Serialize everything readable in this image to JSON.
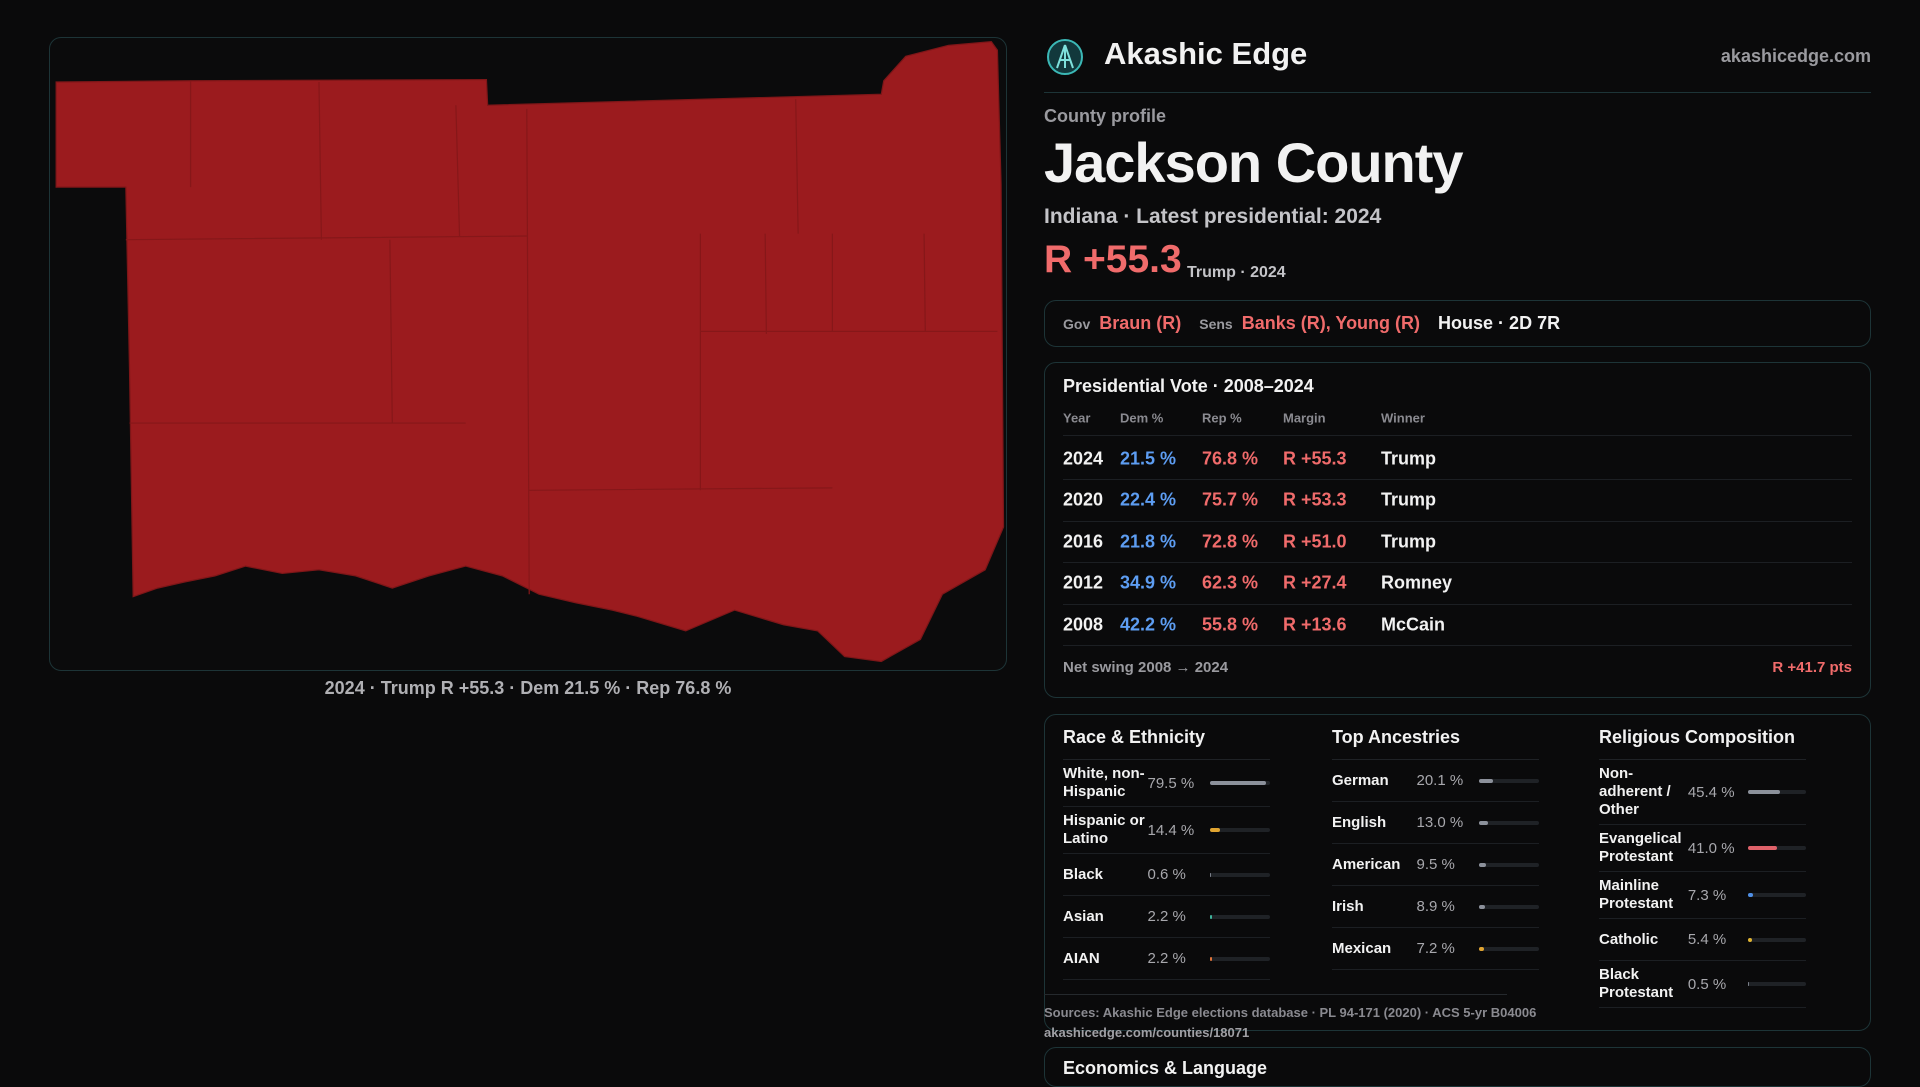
{
  "header": {
    "brand": "Akashic Edge",
    "site": "akashicedge.com"
  },
  "map": {
    "caption": "2024 · Trump R +55.3 · Dem 21.5 % · Rep 76.8 %"
  },
  "profile": {
    "kicker": "County profile",
    "title": "Jackson County",
    "subtitle": "Indiana · Latest presidential: 2024",
    "margin": "R +55.3",
    "margin_note": "Trump · 2024"
  },
  "officials": {
    "gov_label": "Gov",
    "gov": "Braun (R)",
    "sens_label": "Sens",
    "sens": "Banks (R), Young (R)",
    "house": "House · 2D 7R"
  },
  "presidential": {
    "title": "Presidential Vote · 2008–2024",
    "columns": [
      "Year",
      "Dem %",
      "Rep %",
      "Margin",
      "Winner"
    ],
    "rows": [
      [
        "2024",
        "21.5 %",
        "76.8 %",
        "R +55.3",
        "Trump"
      ],
      [
        "2020",
        "22.4 %",
        "75.7 %",
        "R +53.3",
        "Trump"
      ],
      [
        "2016",
        "21.8 %",
        "72.8 %",
        "R +51.0",
        "Trump"
      ],
      [
        "2012",
        "34.9 %",
        "62.3 %",
        "R +27.4",
        "Romney"
      ],
      [
        "2008",
        "42.2 %",
        "55.8 %",
        "R +13.6",
        "McCain"
      ]
    ],
    "footer_label": "Net swing 2008 → 2024",
    "footer_value": "R +41.7 pts"
  },
  "demographics": [
    {
      "title": "Race & Ethnicity",
      "rows": [
        {
          "label": "White, non-Hispanic",
          "value": 79.5,
          "value_label": "79.5 %",
          "color": "#8c919b"
        },
        {
          "label": "Hispanic or Latino",
          "value": 14.4,
          "value_label": "14.4 %",
          "color": "#e0a431"
        },
        {
          "label": "Black",
          "value": 0.6,
          "value_label": "0.6 %",
          "color": "#7a7f89"
        },
        {
          "label": "Asian",
          "value": 2.2,
          "value_label": "2.2 %",
          "color": "#3fb39b"
        },
        {
          "label": "AIAN",
          "value": 2.2,
          "value_label": "2.2 %",
          "color": "#e0743a"
        }
      ]
    },
    {
      "title": "Top Ancestries",
      "rows": [
        {
          "label": "German",
          "value": 20.1,
          "value_label": "20.1 %",
          "color": "#8c919b"
        },
        {
          "label": "English",
          "value": 13.0,
          "value_label": "13.0 %",
          "color": "#8c919b"
        },
        {
          "label": "American",
          "value": 9.5,
          "value_label": "9.5 %",
          "color": "#8c919b"
        },
        {
          "label": "Irish",
          "value": 8.9,
          "value_label": "8.9 %",
          "color": "#8c919b"
        },
        {
          "label": "Mexican",
          "value": 7.2,
          "value_label": "7.2 %",
          "color": "#e0a431"
        }
      ]
    },
    {
      "title": "Religious Composition",
      "rows": [
        {
          "label": "Non-adherent / Other",
          "value": 45.4,
          "value_label": "45.4 %",
          "color": "#8c919b"
        },
        {
          "label": "Evangelical Protestant",
          "value": 41.0,
          "value_label": "41.0 %",
          "color": "#e0626a"
        },
        {
          "label": "Mainline Protestant",
          "value": 7.3,
          "value_label": "7.3 %",
          "color": "#4f8fe6"
        },
        {
          "label": "Catholic",
          "value": 5.4,
          "value_label": "5.4 %",
          "color": "#e0b431"
        },
        {
          "label": "Black Protestant",
          "value": 0.5,
          "value_label": "0.5 %",
          "color": "#7a7f89"
        }
      ]
    }
  ],
  "sources": {
    "text": "Sources: Akashic Edge elections database · PL 94-171 (2020) · ACS 5-yr B04006",
    "url": "akashicedge.com/counties/18071"
  },
  "next_section": {
    "title": "Economics & Language"
  }
}
